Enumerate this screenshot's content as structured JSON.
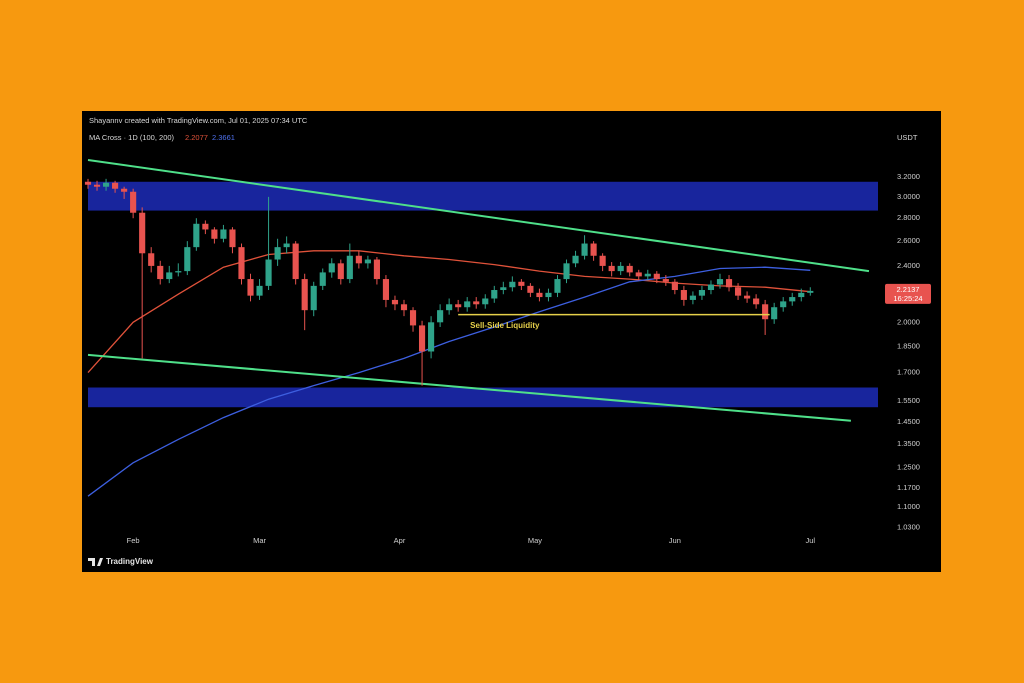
{
  "chart_data": {
    "type": "candlestick",
    "attribution": "Shayannv created with TradingView.com, Jul 01, 2025 07:34 UTC",
    "indicator": "MA Cross · 1D (100, 200)",
    "unit": "USDT",
    "brand": "TradingView",
    "countdown": "16:25:24",
    "log_scale": true,
    "grid": false,
    "xlim": [
      0,
      175
    ],
    "ylim": [
      0.98,
      3.9
    ],
    "xticks": [
      {
        "value": 10,
        "label": "Feb"
      },
      {
        "value": 38,
        "label": "Mar"
      },
      {
        "value": 69,
        "label": "Apr"
      },
      {
        "value": 99,
        "label": "May"
      },
      {
        "value": 130,
        "label": "Jun"
      },
      {
        "value": 160,
        "label": "Jul"
      }
    ],
    "yticks": [
      {
        "value": 3.2,
        "label": "3.2000"
      },
      {
        "value": 3.0,
        "label": "3.0000"
      },
      {
        "value": 2.8,
        "label": "2.8000"
      },
      {
        "value": 2.6,
        "label": "2.6000"
      },
      {
        "value": 2.4,
        "label": "2.4000"
      },
      {
        "value": 2.0,
        "label": "2.0000"
      },
      {
        "value": 1.85,
        "label": "1.8500"
      },
      {
        "value": 1.7,
        "label": "1.7000"
      },
      {
        "value": 1.55,
        "label": "1.5500"
      },
      {
        "value": 1.45,
        "label": "1.4500"
      },
      {
        "value": 1.35,
        "label": "1.3500"
      },
      {
        "value": 1.25,
        "label": "1.2500"
      },
      {
        "value": 1.17,
        "label": "1.1700"
      },
      {
        "value": 1.1,
        "label": "1.1000"
      },
      {
        "value": 1.03,
        "label": "1.0300"
      }
    ],
    "up_color": "#2fa38a",
    "down_color": "#e8534f",
    "candles": {
      "x": [
        0,
        2,
        4,
        6,
        8,
        10,
        12,
        14,
        16,
        18,
        20,
        22,
        24,
        26,
        28,
        30,
        32,
        34,
        36,
        38,
        40,
        42,
        44,
        46,
        48,
        50,
        52,
        54,
        56,
        58,
        60,
        62,
        64,
        66,
        68,
        70,
        72,
        74,
        76,
        78,
        80,
        82,
        84,
        86,
        88,
        90,
        92,
        94,
        96,
        98,
        100,
        102,
        104,
        106,
        108,
        110,
        112,
        114,
        116,
        118,
        120,
        122,
        124,
        126,
        128,
        130,
        132,
        134,
        136,
        138,
        140,
        142,
        144,
        146,
        148,
        150,
        152,
        154,
        156,
        158,
        160
      ],
      "open": [
        3.15,
        3.12,
        3.1,
        3.14,
        3.08,
        3.05,
        2.85,
        2.5,
        2.4,
        2.3,
        2.35,
        2.36,
        2.55,
        2.75,
        2.7,
        2.62,
        2.7,
        2.55,
        2.3,
        2.18,
        2.25,
        2.45,
        2.55,
        2.58,
        2.3,
        2.08,
        2.25,
        2.35,
        2.42,
        2.3,
        2.48,
        2.42,
        2.45,
        2.3,
        2.15,
        2.12,
        2.08,
        1.98,
        1.82,
        2.0,
        2.08,
        2.12,
        2.1,
        2.14,
        2.12,
        2.16,
        2.22,
        2.24,
        2.28,
        2.25,
        2.2,
        2.17,
        2.2,
        2.3,
        2.42,
        2.48,
        2.58,
        2.48,
        2.4,
        2.36,
        2.4,
        2.35,
        2.32,
        2.34,
        2.3,
        2.28,
        2.22,
        2.15,
        2.18,
        2.22,
        2.26,
        2.3,
        2.24,
        2.18,
        2.16,
        2.12,
        2.02,
        2.1,
        2.14,
        2.17,
        2.2
      ],
      "high": [
        3.18,
        3.16,
        3.18,
        3.16,
        3.1,
        3.08,
        2.9,
        2.55,
        2.44,
        2.4,
        2.42,
        2.6,
        2.8,
        2.78,
        2.72,
        2.74,
        2.72,
        2.58,
        2.34,
        2.3,
        3.0,
        2.62,
        2.64,
        2.6,
        2.34,
        2.28,
        2.38,
        2.46,
        2.45,
        2.58,
        2.52,
        2.48,
        2.47,
        2.33,
        2.18,
        2.15,
        2.1,
        2.01,
        2.04,
        2.12,
        2.16,
        2.15,
        2.17,
        2.17,
        2.19,
        2.25,
        2.28,
        2.32,
        2.3,
        2.27,
        2.23,
        2.23,
        2.33,
        2.45,
        2.52,
        2.65,
        2.6,
        2.5,
        2.43,
        2.43,
        2.42,
        2.37,
        2.37,
        2.36,
        2.33,
        2.3,
        2.25,
        2.21,
        2.25,
        2.29,
        2.34,
        2.33,
        2.27,
        2.21,
        2.19,
        2.15,
        2.13,
        2.17,
        2.2,
        2.23,
        2.24
      ],
      "low": [
        3.08,
        3.06,
        3.06,
        3.04,
        2.98,
        2.8,
        1.78,
        2.35,
        2.26,
        2.27,
        2.32,
        2.33,
        2.52,
        2.66,
        2.58,
        2.59,
        2.5,
        2.26,
        2.14,
        2.15,
        2.22,
        2.4,
        2.5,
        2.26,
        1.95,
        2.04,
        2.22,
        2.31,
        2.26,
        2.27,
        2.38,
        2.38,
        2.26,
        2.1,
        2.08,
        2.04,
        1.94,
        1.63,
        1.78,
        1.97,
        2.05,
        2.07,
        2.07,
        2.09,
        2.09,
        2.13,
        2.19,
        2.21,
        2.22,
        2.17,
        2.14,
        2.14,
        2.17,
        2.27,
        2.39,
        2.45,
        2.44,
        2.36,
        2.32,
        2.33,
        2.32,
        2.29,
        2.29,
        2.27,
        2.25,
        2.19,
        2.11,
        2.12,
        2.15,
        2.19,
        2.23,
        2.21,
        2.15,
        2.13,
        2.09,
        1.92,
        1.99,
        2.07,
        2.11,
        2.14,
        2.18
      ],
      "close": [
        3.12,
        3.1,
        3.14,
        3.08,
        3.05,
        2.85,
        2.5,
        2.4,
        2.3,
        2.35,
        2.36,
        2.55,
        2.75,
        2.7,
        2.62,
        2.7,
        2.55,
        2.3,
        2.18,
        2.25,
        2.45,
        2.55,
        2.58,
        2.3,
        2.08,
        2.25,
        2.35,
        2.42,
        2.3,
        2.48,
        2.42,
        2.45,
        2.3,
        2.15,
        2.12,
        2.08,
        1.98,
        1.82,
        2.0,
        2.08,
        2.12,
        2.1,
        2.14,
        2.12,
        2.16,
        2.22,
        2.24,
        2.28,
        2.25,
        2.2,
        2.17,
        2.2,
        2.3,
        2.42,
        2.48,
        2.58,
        2.48,
        2.4,
        2.36,
        2.4,
        2.35,
        2.32,
        2.34,
        2.3,
        2.28,
        2.22,
        2.15,
        2.18,
        2.22,
        2.26,
        2.3,
        2.24,
        2.18,
        2.16,
        2.12,
        2.02,
        2.1,
        2.14,
        2.17,
        2.2,
        2.2137
      ]
    },
    "ma_lines": [
      {
        "color": "#e0523a",
        "x": [
          0,
          10,
          20,
          30,
          40,
          50,
          60,
          70,
          80,
          90,
          100,
          110,
          120,
          130,
          140,
          150,
          160
        ],
        "values": [
          1.7,
          2.0,
          2.19,
          2.39,
          2.49,
          2.52,
          2.52,
          2.48,
          2.45,
          2.41,
          2.36,
          2.32,
          2.3,
          2.27,
          2.25,
          2.24,
          2.2077
        ]
      },
      {
        "color": "#3d5fe0",
        "x": [
          0,
          10,
          20,
          30,
          40,
          50,
          60,
          70,
          80,
          90,
          100,
          110,
          120,
          130,
          140,
          150,
          160
        ],
        "values": [
          1.14,
          1.27,
          1.37,
          1.47,
          1.56,
          1.63,
          1.7,
          1.78,
          1.88,
          1.97,
          2.07,
          2.17,
          2.28,
          2.32,
          2.38,
          2.39,
          2.3661
        ]
      }
    ],
    "zones": [
      {
        "color": "#1c2bb8",
        "x": [
          0,
          175
        ],
        "y": [
          2.87,
          3.15
        ]
      },
      {
        "color": "#1c2bb8",
        "x": [
          0,
          175
        ],
        "y": [
          1.52,
          1.62
        ]
      }
    ],
    "trendlines": [
      {
        "color": "#4fe08a",
        "x": [
          0,
          173
        ],
        "y": [
          3.38,
          2.36
        ]
      },
      {
        "color": "#4fe08a",
        "x": [
          0,
          169
        ],
        "y": [
          1.8,
          1.455
        ]
      }
    ],
    "annotations": [
      {
        "text": "Sell-Side Liquidity",
        "color": "#e6d04a",
        "x": [
          82,
          151
        ],
        "y": 2.05
      }
    ]
  }
}
